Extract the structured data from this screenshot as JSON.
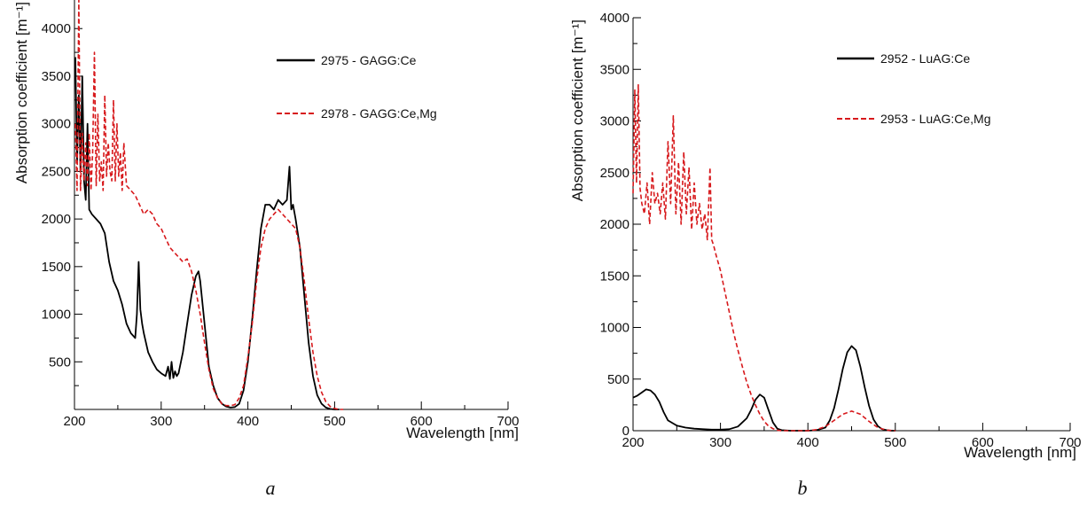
{
  "chart_data": [
    {
      "type": "line",
      "panel_label": "a",
      "xlabel": "Wavelength [nm]",
      "ylabel": "Absorption coefficient [m⁻¹]",
      "xlim": [
        200,
        700
      ],
      "ylim": [
        0,
        4300
      ],
      "x_ticks": [
        200,
        300,
        400,
        500,
        600,
        700
      ],
      "y_ticks": [
        500,
        1000,
        1500,
        2000,
        2500,
        3000,
        3500,
        4000
      ],
      "grid": false,
      "legend_position": "top-right",
      "series": [
        {
          "name": "2975 - GAGG:Ce",
          "color": "#000000",
          "style": "solid",
          "x": [
            201,
            203,
            205,
            207,
            209,
            211,
            213,
            215,
            217,
            220,
            225,
            230,
            235,
            240,
            245,
            250,
            255,
            260,
            265,
            270,
            272,
            274,
            276,
            278,
            280,
            285,
            290,
            295,
            300,
            305,
            308,
            310,
            312,
            314,
            316,
            318,
            320,
            325,
            330,
            335,
            340,
            343,
            345,
            350,
            355,
            360,
            365,
            370,
            375,
            380,
            385,
            390,
            395,
            400,
            405,
            410,
            415,
            420,
            425,
            430,
            435,
            440,
            445,
            448,
            450,
            452,
            455,
            460,
            465,
            470,
            475,
            480,
            485,
            490,
            495,
            500,
            505
          ],
          "y": [
            3700,
            2600,
            3300,
            2500,
            3500,
            2400,
            2200,
            3000,
            2100,
            2050,
            2000,
            1950,
            1850,
            1550,
            1350,
            1250,
            1100,
            900,
            800,
            750,
            1000,
            1550,
            1050,
            900,
            800,
            600,
            500,
            420,
            380,
            350,
            450,
            320,
            500,
            330,
            400,
            350,
            380,
            600,
            900,
            1200,
            1400,
            1450,
            1350,
            900,
            450,
            250,
            120,
            60,
            30,
            20,
            25,
            60,
            200,
            500,
            950,
            1450,
            1900,
            2150,
            2150,
            2100,
            2200,
            2150,
            2200,
            2550,
            2100,
            2150,
            2000,
            1700,
            1200,
            700,
            350,
            150,
            60,
            20,
            5,
            0,
            0
          ]
        },
        {
          "name": "2978 - GAGG:Ce,Mg",
          "color": "#d7191c",
          "style": "dashed",
          "x": [
            201,
            203,
            205,
            207,
            209,
            211,
            213,
            215,
            217,
            219,
            221,
            223,
            225,
            227,
            229,
            231,
            233,
            235,
            237,
            239,
            241,
            243,
            245,
            247,
            249,
            251,
            253,
            255,
            257,
            260,
            265,
            270,
            275,
            280,
            285,
            290,
            295,
            300,
            305,
            310,
            315,
            320,
            325,
            330,
            335,
            340,
            345,
            350,
            355,
            360,
            365,
            370,
            375,
            380,
            385,
            390,
            395,
            400,
            405,
            410,
            415,
            420,
            425,
            430,
            435,
            440,
            445,
            450,
            455,
            460,
            465,
            470,
            475,
            480,
            485,
            490,
            495,
            500,
            505,
            510
          ],
          "y": [
            3000,
            2300,
            4300,
            2300,
            2900,
            2400,
            2800,
            2350,
            2900,
            2300,
            2700,
            3750,
            2350,
            3100,
            2400,
            2600,
            2300,
            3300,
            2450,
            2800,
            2500,
            2400,
            3250,
            2400,
            3000,
            2450,
            2700,
            2300,
            2800,
            2350,
            2300,
            2250,
            2150,
            2050,
            2100,
            2050,
            1950,
            1900,
            1800,
            1700,
            1650,
            1600,
            1550,
            1580,
            1450,
            1250,
            1000,
            700,
            420,
            220,
            120,
            60,
            40,
            40,
            50,
            120,
            250,
            550,
            900,
            1350,
            1700,
            1900,
            2000,
            2050,
            2100,
            2050,
            2000,
            1950,
            1900,
            1700,
            1350,
            950,
            600,
            350,
            180,
            80,
            30,
            10,
            0,
            0
          ]
        }
      ]
    },
    {
      "type": "line",
      "panel_label": "b",
      "xlabel": "Wavelength [nm]",
      "ylabel": "Absorption coefficient [m⁻¹]",
      "xlim": [
        200,
        700
      ],
      "ylim": [
        0,
        4000
      ],
      "x_ticks": [
        200,
        300,
        400,
        500,
        600,
        700
      ],
      "y_ticks": [
        0,
        500,
        1000,
        1500,
        2000,
        2500,
        3000,
        3500,
        4000
      ],
      "grid": false,
      "legend_position": "top-right",
      "series": [
        {
          "name": "2952 - LuAG:Ce",
          "color": "#000000",
          "style": "solid",
          "x": [
            200,
            205,
            210,
            215,
            220,
            225,
            230,
            235,
            240,
            250,
            260,
            270,
            280,
            290,
            300,
            310,
            320,
            330,
            335,
            340,
            345,
            350,
            355,
            360,
            365,
            370,
            380,
            390,
            400,
            410,
            420,
            425,
            430,
            435,
            440,
            445,
            450,
            455,
            460,
            465,
            470,
            475,
            480,
            485,
            490,
            495,
            500
          ],
          "y": [
            320,
            340,
            370,
            400,
            390,
            350,
            280,
            180,
            100,
            50,
            30,
            20,
            15,
            10,
            10,
            15,
            40,
            120,
            200,
            300,
            350,
            320,
            200,
            80,
            20,
            5,
            0,
            0,
            0,
            5,
            30,
            100,
            220,
            400,
            600,
            760,
            820,
            780,
            620,
            420,
            240,
            110,
            45,
            15,
            5,
            0,
            0
          ]
        },
        {
          "name": "2953 - LuAG:Ce,Mg",
          "color": "#d7191c",
          "style": "dashed",
          "x": [
            200,
            202,
            204,
            206,
            208,
            210,
            213,
            216,
            219,
            222,
            225,
            228,
            231,
            234,
            237,
            240,
            243,
            246,
            249,
            252,
            255,
            258,
            261,
            264,
            267,
            270,
            273,
            276,
            279,
            282,
            285,
            288,
            290,
            292,
            295,
            300,
            305,
            310,
            315,
            320,
            325,
            330,
            335,
            340,
            345,
            350,
            355,
            360,
            365,
            370,
            375,
            380,
            400,
            410,
            420,
            430,
            440,
            450,
            460,
            470,
            480,
            490,
            500
          ],
          "y": [
            2300,
            3300,
            2400,
            3350,
            2350,
            2200,
            2100,
            2400,
            2000,
            2500,
            2200,
            2300,
            2100,
            2400,
            2050,
            2800,
            2200,
            3050,
            2100,
            2600,
            2000,
            2700,
            2100,
            2550,
            1950,
            2400,
            2000,
            2200,
            1950,
            2100,
            1850,
            2550,
            1850,
            1800,
            1700,
            1550,
            1350,
            1150,
            950,
            780,
            620,
            470,
            350,
            250,
            160,
            90,
            45,
            20,
            5,
            0,
            0,
            0,
            0,
            10,
            40,
            100,
            160,
            190,
            160,
            90,
            30,
            5,
            0
          ]
        }
      ]
    }
  ]
}
